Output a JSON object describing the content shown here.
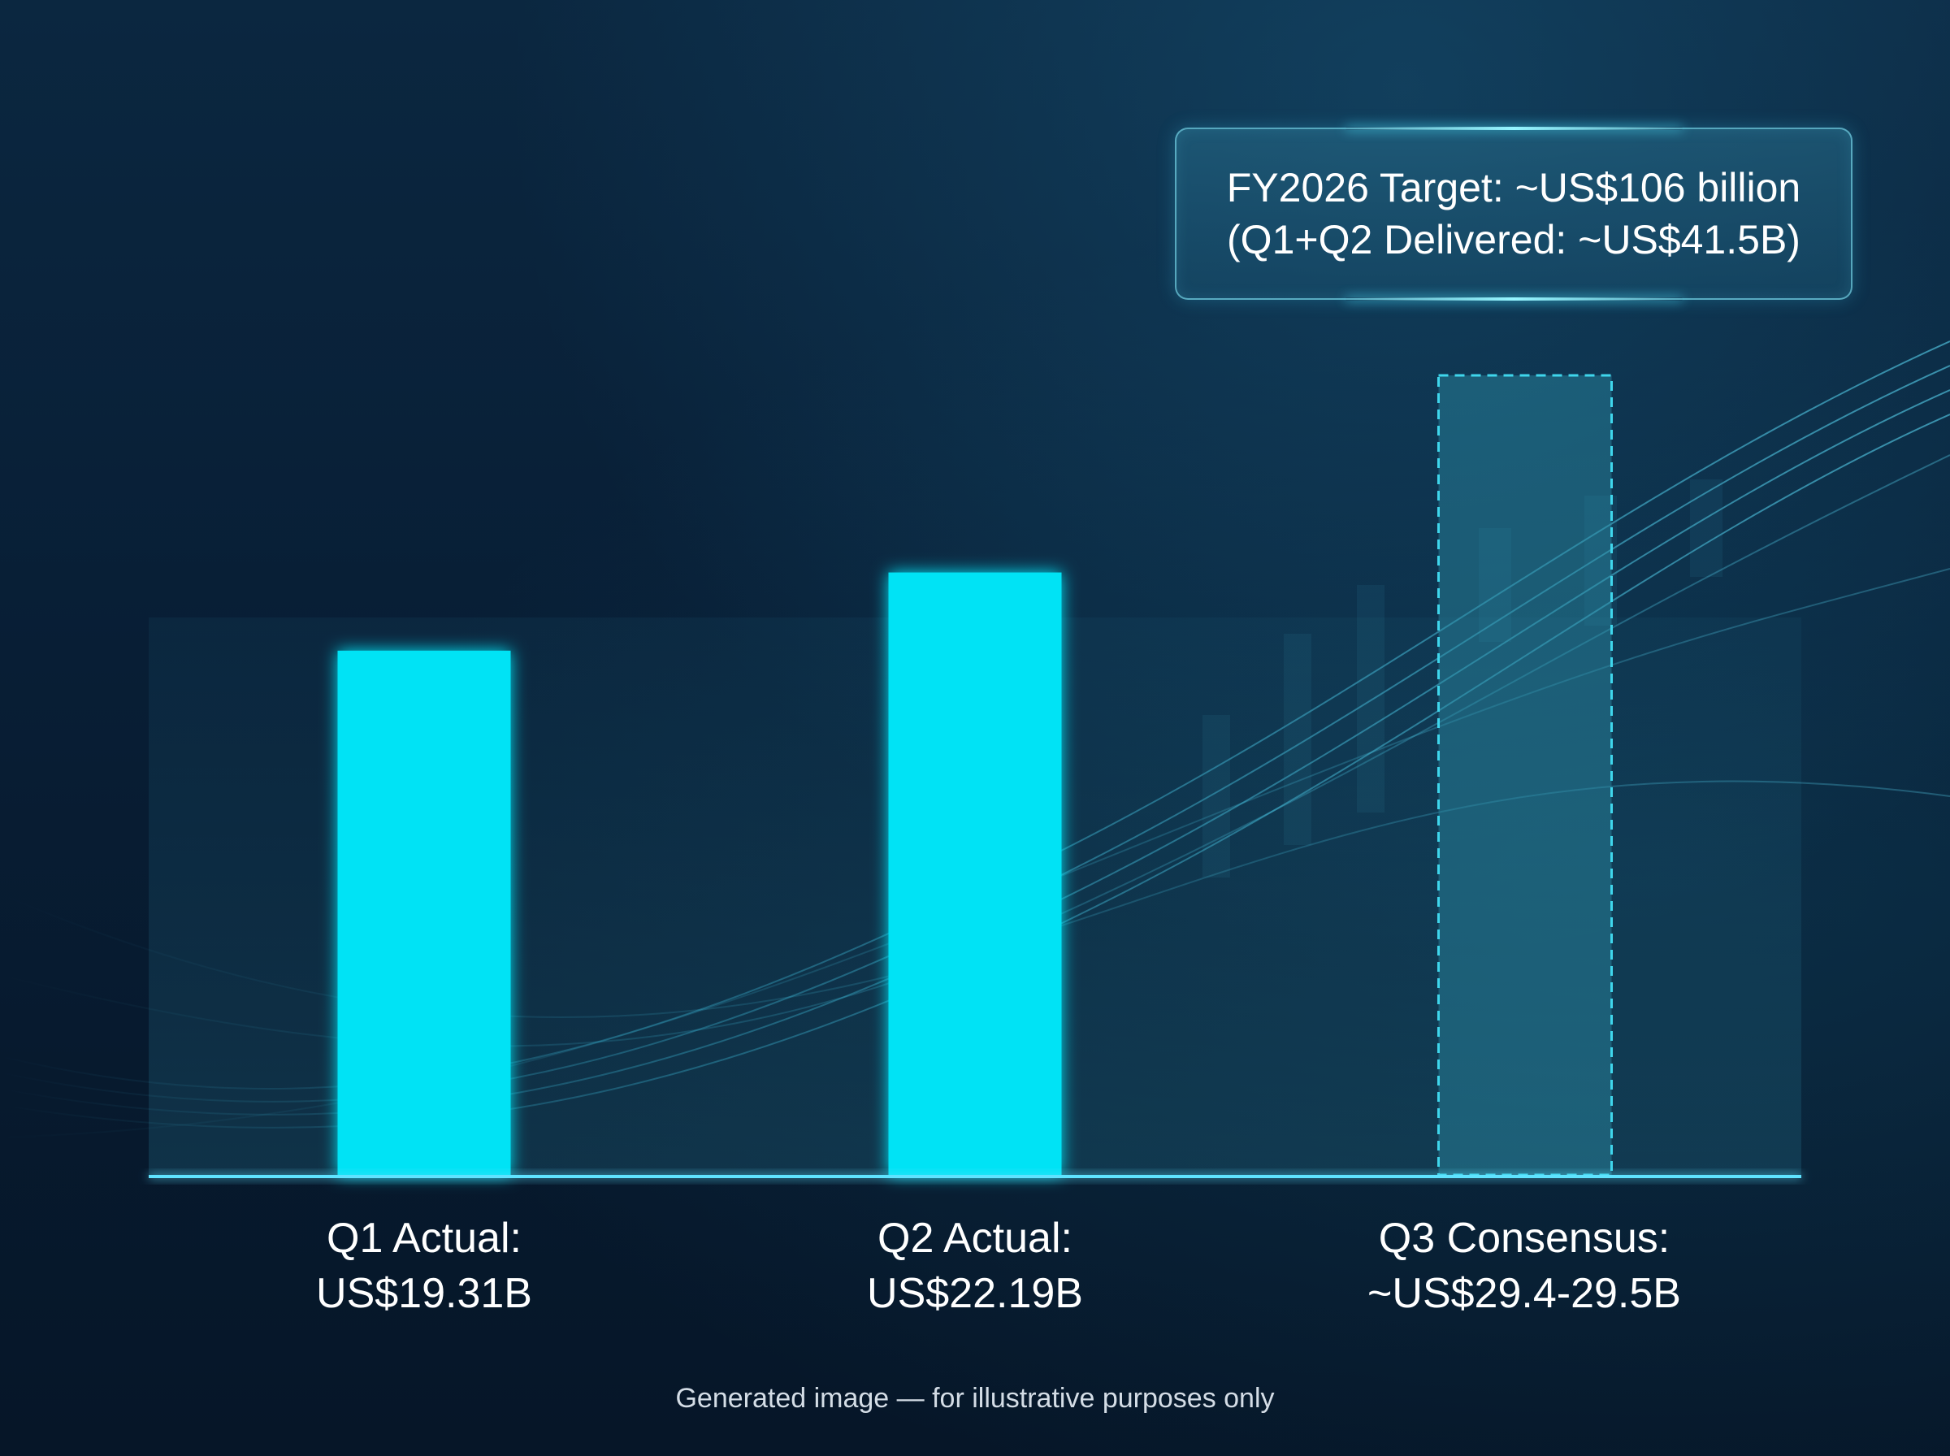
{
  "colors": {
    "actual_bar": "#00e3f5",
    "projected_bar_fill": "#2d8ea6",
    "projected_bar_border": "#3fd6ec",
    "baseline": "#5fe3ff",
    "background": "#06182b"
  },
  "callout": {
    "line1": "FY2026 Target: ~US$106 billion",
    "line2": "(Q1+Q2 Delivered: ~US$41.5B)"
  },
  "chart_data": {
    "type": "bar",
    "categories": [
      "Q1",
      "Q2",
      "Q3"
    ],
    "values": [
      19.31,
      22.19,
      29.45
    ],
    "bar_styles": [
      "actual",
      "actual",
      "projected"
    ],
    "labels": [
      {
        "line1": "Q1 Actual:",
        "line2": "US$19.31B"
      },
      {
        "line1": "Q2 Actual:",
        "line2": "US$22.19B"
      },
      {
        "line1": "Q3 Consensus:",
        "line2": "~US$29.4-29.5B"
      }
    ],
    "ylim": [
      0,
      29.45
    ],
    "grid": false,
    "axes_visible": false
  },
  "footer": {
    "note": "Generated image — for illustrative purposes only"
  }
}
